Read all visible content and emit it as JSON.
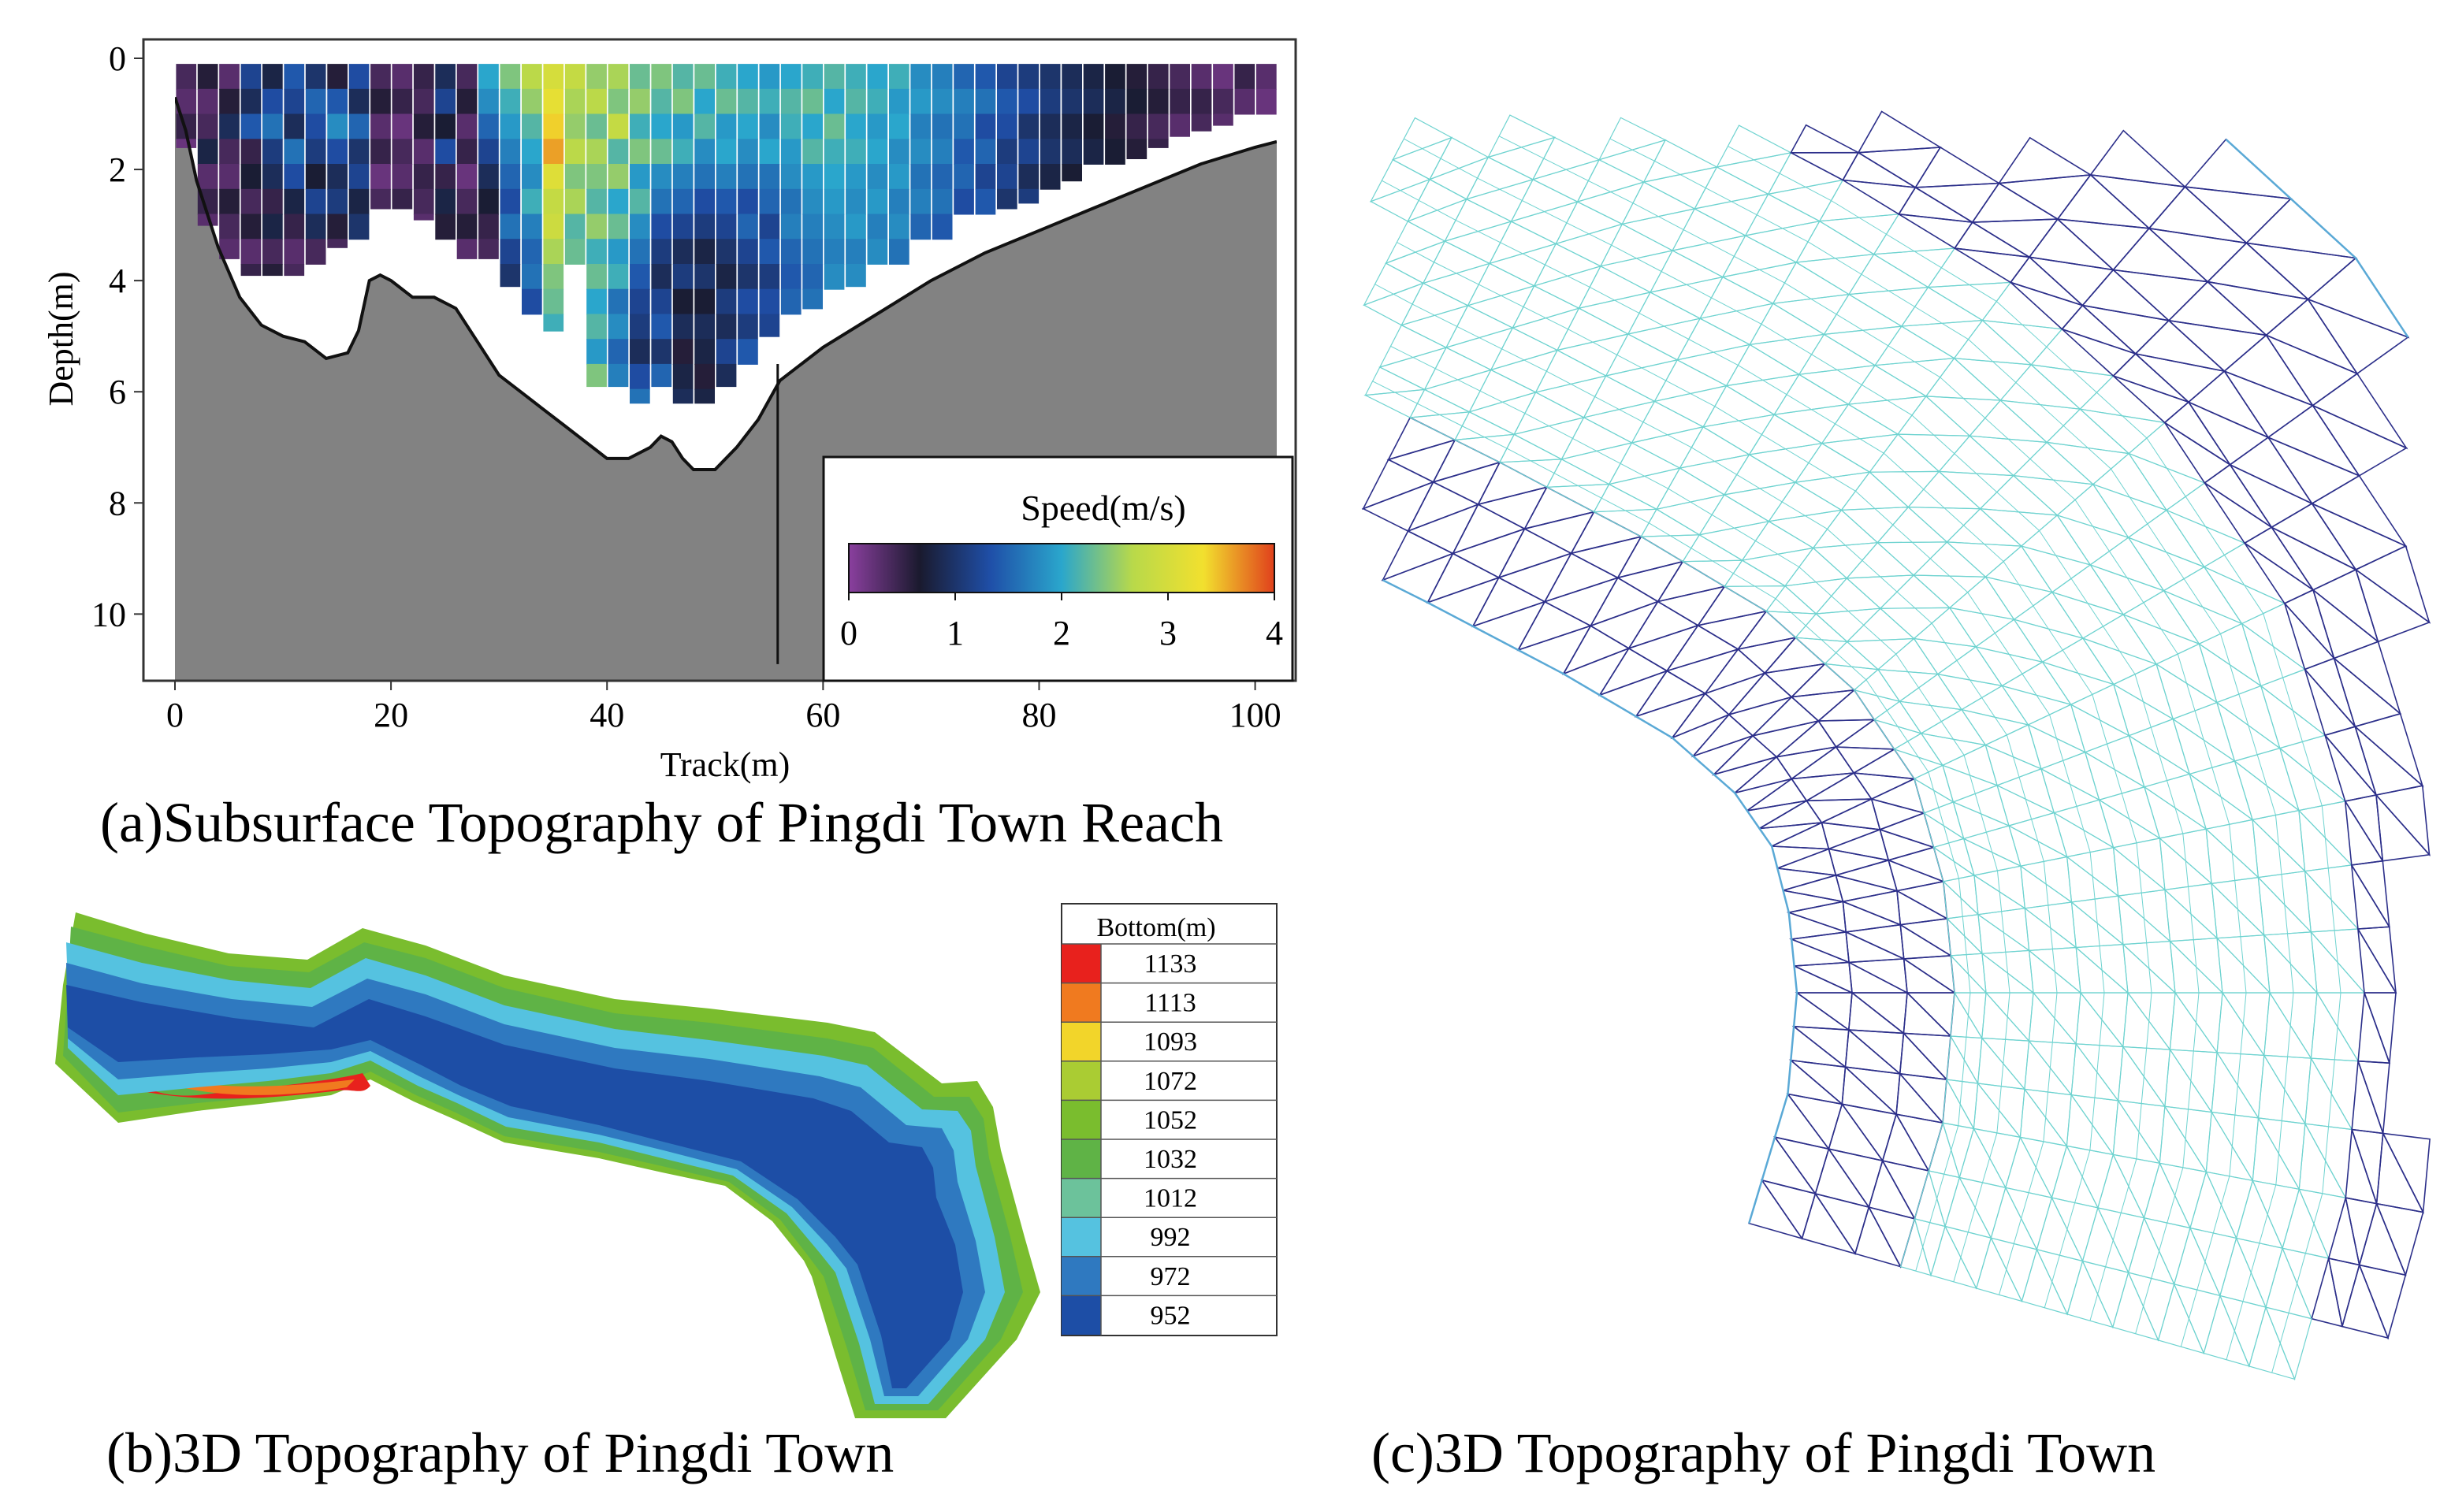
{
  "panel_a": {
    "caption": "(a)Subsurface Topography of Pingdi Town Reach",
    "colorbar_title": "Speed(m/s)",
    "colorbar_colors": [
      "#8a3f9e",
      "#1a1a2e",
      "#1f4fa8",
      "#2aa6cc",
      "#b8d94a",
      "#f2e02e",
      "#e0401c"
    ]
  },
  "panel_b": {
    "caption": "(b)3D Topography of Pingdi Town",
    "legend_title": "Bottom(m)",
    "legend": [
      {
        "label": "1133",
        "color": "#e8211d"
      },
      {
        "label": "1113",
        "color": "#f07a1f"
      },
      {
        "label": "1093",
        "color": "#f2d52a"
      },
      {
        "label": "1072",
        "color": "#aacc33"
      },
      {
        "label": "1052",
        "color": "#7abd2e"
      },
      {
        "label": "1032",
        "color": "#5fb346"
      },
      {
        "label": "1012",
        "color": "#6cc29b"
      },
      {
        "label": "992",
        "color": "#55c2e0"
      },
      {
        "label": "972",
        "color": "#2f79c0"
      },
      {
        "label": "952",
        "color": "#1d4ea6"
      }
    ]
  },
  "panel_c": {
    "caption": "(c)3D Topography of Pingdi Town",
    "mesh_colors": {
      "coarse": "#2c2f8a",
      "fine": "#6fd3d0",
      "boundary": "#5aa9d6"
    }
  },
  "chart_data": [
    {
      "type": "heatmap",
      "title": "",
      "xlabel": "Track(m)",
      "ylabel": "Depth(m)",
      "xlim": [
        0,
        102
      ],
      "ylim": [
        0,
        11.2
      ],
      "y_inverted": true,
      "x_ticks": [
        0,
        20,
        40,
        60,
        80,
        100
      ],
      "y_ticks": [
        0,
        2,
        4,
        6,
        8,
        10
      ],
      "colorbar": {
        "label": "Speed(m/s)",
        "range": [
          0,
          4
        ],
        "ticks": [
          0,
          1,
          2,
          3,
          4
        ]
      },
      "bed_profile": {
        "x": [
          0,
          1,
          2,
          4,
          6,
          8,
          10,
          12,
          14,
          16,
          17,
          18,
          19,
          20,
          22,
          24,
          26,
          28,
          30,
          32,
          34,
          36,
          38,
          40,
          42,
          44,
          45,
          46,
          47,
          48,
          50,
          52,
          54,
          56,
          60,
          65,
          70,
          75,
          80,
          85,
          90,
          95,
          100,
          102
        ],
        "depth": [
          0.7,
          1.3,
          2.2,
          3.4,
          4.3,
          4.8,
          5.0,
          5.1,
          5.4,
          5.3,
          4.9,
          4.0,
          3.9,
          4.0,
          4.3,
          4.3,
          4.5,
          5.1,
          5.7,
          6.0,
          6.3,
          6.6,
          6.9,
          7.2,
          7.2,
          7.0,
          6.8,
          6.9,
          7.2,
          7.4,
          7.4,
          7.0,
          6.5,
          5.8,
          5.2,
          4.6,
          4.0,
          3.5,
          3.1,
          2.7,
          2.3,
          1.9,
          1.6,
          1.5
        ]
      },
      "profile_mark": {
        "x": 55.8,
        "depth_top": 5.5,
        "depth_bottom": 10.9
      },
      "speed_grid": {
        "dx": 1.8,
        "dy": 0.45,
        "columns": [
          {
            "x": 1,
            "bottom": 1.6,
            "speeds": [
              0.4,
              0.3,
              0.5,
              0.2
            ]
          },
          {
            "x": 3,
            "bottom": 3.0,
            "speeds": [
              0.6,
              0.3,
              0.4,
              0.8,
              0.3,
              0.5,
              0.3
            ]
          },
          {
            "x": 5,
            "bottom": 3.6,
            "speeds": [
              0.3,
              0.6,
              0.9,
              0.4,
              0.3,
              0.6,
              0.4,
              0.3
            ]
          },
          {
            "x": 7,
            "bottom": 3.9,
            "speeds": [
              1.2,
              0.9,
              1.4,
              0.5,
              0.7,
              0.4,
              0.6,
              0.3,
              0.5
            ]
          },
          {
            "x": 9,
            "bottom": 3.9,
            "speeds": [
              0.8,
              1.3,
              1.6,
              1.1,
              0.9,
              0.5,
              0.8,
              0.4,
              0.6
            ]
          },
          {
            "x": 11,
            "bottom": 3.9,
            "speeds": [
              1.4,
              1.2,
              0.9,
              1.6,
              1.3,
              0.8,
              0.5,
              0.3,
              0.4
            ]
          },
          {
            "x": 13,
            "bottom": 3.7,
            "speeds": [
              1.0,
              1.5,
              1.3,
              1.1,
              0.7,
              1.2,
              0.9,
              0.4
            ]
          },
          {
            "x": 15,
            "bottom": 3.4,
            "speeds": [
              0.6,
              1.4,
              1.8,
              1.3,
              0.9,
              1.1,
              0.6,
              0.4
            ]
          },
          {
            "x": 17,
            "bottom": 3.3,
            "speeds": [
              1.3,
              0.9,
              1.5,
              1.0,
              1.2,
              0.8,
              1.0
            ]
          },
          {
            "x": 19,
            "bottom": 2.7,
            "speeds": [
              0.4,
              0.6,
              0.3,
              0.5,
              0.2,
              0.4
            ]
          },
          {
            "x": 21,
            "bottom": 2.7,
            "speeds": [
              0.3,
              0.5,
              0.2,
              0.4,
              0.3,
              0.5
            ]
          },
          {
            "x": 23,
            "bottom": 2.9,
            "speeds": [
              0.5,
              0.4,
              0.6,
              0.3,
              0.5,
              0.4,
              0.3
            ]
          },
          {
            "x": 25,
            "bottom": 3.3,
            "speeds": [
              0.9,
              1.2,
              0.7,
              1.3,
              0.5,
              0.8,
              0.6
            ]
          },
          {
            "x": 27,
            "bottom": 3.6,
            "speeds": [
              0.4,
              0.6,
              0.3,
              0.5,
              0.2,
              0.4,
              0.6,
              0.3
            ]
          },
          {
            "x": 29,
            "bottom": 3.6,
            "speeds": [
              2.0,
              1.8,
              1.5,
              1.2,
              0.9,
              0.7,
              0.5,
              0.4
            ]
          },
          {
            "x": 31,
            "bottom": 4.1,
            "speeds": [
              2.4,
              2.1,
              1.9,
              1.7,
              1.5,
              1.3,
              1.6,
              1.2,
              1.0
            ]
          },
          {
            "x": 33,
            "bottom": 4.7,
            "speeds": [
              2.7,
              2.5,
              2.2,
              2.0,
              1.8,
              2.1,
              1.7,
              1.5,
              1.6,
              1.3
            ]
          },
          {
            "x": 35,
            "bottom": 4.9,
            "speeds": [
              3.0,
              3.2,
              3.4,
              3.6,
              3.1,
              2.8,
              2.9,
              2.6,
              2.4,
              2.3,
              2.1
            ]
          },
          {
            "x": 37,
            "bottom": 3.9,
            "speeds": [
              2.8,
              2.6,
              2.5,
              2.7,
              2.4,
              2.6,
              2.2,
              2.3
            ]
          },
          {
            "x": 39,
            "bottom": 5.9,
            "speeds": [
              2.5,
              2.7,
              2.3,
              2.6,
              2.4,
              2.2,
              2.5,
              2.1,
              2.3,
              2.0,
              2.2,
              1.9,
              2.4
            ]
          },
          {
            "x": 41,
            "bottom": 5.9,
            "speeds": [
              2.6,
              2.4,
              2.8,
              2.2,
              2.5,
              2.0,
              2.3,
              1.9,
              2.1,
              1.6,
              1.8,
              1.5,
              1.7
            ]
          },
          {
            "x": 43,
            "bottom": 6.2,
            "speeds": [
              2.3,
              2.5,
              2.1,
              2.4,
              1.9,
              2.2,
              1.8,
              1.6,
              1.4,
              1.2,
              1.1,
              0.9,
              1.3,
              1.6
            ]
          },
          {
            "x": 45,
            "bottom": 5.9,
            "speeds": [
              2.4,
              2.2,
              2.0,
              2.3,
              1.8,
              1.6,
              1.3,
              1.1,
              0.9,
              1.2,
              1.4,
              1.0,
              1.5
            ]
          },
          {
            "x": 47,
            "bottom": 6.2,
            "speeds": [
              2.2,
              2.4,
              1.9,
              2.1,
              1.7,
              1.5,
              1.2,
              0.9,
              1.1,
              0.7,
              0.9,
              0.6,
              0.8,
              0.9
            ]
          },
          {
            "x": 49,
            "bottom": 6.2,
            "speeds": [
              2.3,
              2.0,
              2.2,
              1.8,
              1.6,
              1.3,
              1.1,
              0.8,
              1.0,
              0.7,
              0.9,
              0.8,
              0.6,
              0.8
            ]
          },
          {
            "x": 51,
            "bottom": 5.9,
            "speeds": [
              2.1,
              2.3,
              1.9,
              2.0,
              1.7,
              1.4,
              1.2,
              1.0,
              0.8,
              1.1,
              0.9,
              1.2,
              0.9
            ]
          },
          {
            "x": 53,
            "bottom": 5.6,
            "speeds": [
              2.0,
              2.2,
              2.0,
              1.8,
              1.6,
              1.3,
              1.5,
              1.2,
              1.0,
              1.3,
              1.1,
              1.4
            ]
          },
          {
            "x": 55,
            "bottom": 5.0,
            "speeds": [
              1.9,
              2.1,
              1.8,
              2.0,
              1.6,
              1.5,
              1.2,
              1.4,
              1.1,
              1.3,
              1.2
            ]
          },
          {
            "x": 57,
            "bottom": 4.8,
            "speeds": [
              2.0,
              2.2,
              2.1,
              1.9,
              1.8,
              1.6,
              1.7,
              1.5,
              1.4,
              1.5
            ]
          },
          {
            "x": 59,
            "bottom": 4.5,
            "speeds": [
              2.1,
              2.3,
              2.0,
              2.2,
              1.9,
              1.8,
              1.7,
              1.6,
              1.5,
              1.6
            ]
          },
          {
            "x": 61,
            "bottom": 4.3,
            "speeds": [
              2.2,
              2.0,
              2.3,
              2.1,
              2.0,
              1.9,
              1.8,
              1.7,
              1.8
            ]
          },
          {
            "x": 63,
            "bottom": 4.1,
            "speeds": [
              2.1,
              2.2,
              2.0,
              2.1,
              1.9,
              1.8,
              1.9,
              1.7,
              1.8
            ]
          },
          {
            "x": 65,
            "bottom": 3.9,
            "speeds": [
              2.0,
              2.1,
              1.9,
              2.0,
              1.8,
              1.9,
              1.7,
              1.8
            ]
          },
          {
            "x": 67,
            "bottom": 3.7,
            "speeds": [
              2.1,
              1.9,
              2.0,
              1.8,
              1.9,
              1.7,
              1.8,
              1.6
            ]
          },
          {
            "x": 69,
            "bottom": 3.5,
            "speeds": [
              1.8,
              1.9,
              1.7,
              1.8,
              1.6,
              1.7,
              1.5
            ]
          },
          {
            "x": 71,
            "bottom": 3.3,
            "speeds": [
              1.7,
              1.8,
              1.6,
              1.7,
              1.5,
              1.6,
              1.4
            ]
          },
          {
            "x": 73,
            "bottom": 3.1,
            "speeds": [
              1.5,
              1.7,
              1.6,
              1.4,
              1.5,
              1.3
            ]
          },
          {
            "x": 75,
            "bottom": 2.9,
            "speeds": [
              1.4,
              1.6,
              1.3,
              1.5,
              1.2,
              1.4
            ]
          },
          {
            "x": 77,
            "bottom": 2.7,
            "speeds": [
              1.2,
              1.4,
              1.3,
              1.1,
              1.2,
              1.0
            ]
          },
          {
            "x": 79,
            "bottom": 2.6,
            "speeds": [
              1.1,
              1.3,
              1.0,
              1.2,
              0.9,
              1.1
            ]
          },
          {
            "x": 81,
            "bottom": 2.4,
            "speeds": [
              1.0,
              1.1,
              0.9,
              1.0,
              0.8
            ]
          },
          {
            "x": 83,
            "bottom": 2.2,
            "speeds": [
              0.9,
              1.0,
              0.8,
              0.9,
              0.7
            ]
          },
          {
            "x": 85,
            "bottom": 2.0,
            "speeds": [
              0.8,
              0.9,
              0.7,
              0.8
            ]
          },
          {
            "x": 87,
            "bottom": 1.9,
            "speeds": [
              0.7,
              0.8,
              0.6,
              0.7
            ]
          },
          {
            "x": 89,
            "bottom": 1.8,
            "speeds": [
              0.6,
              0.7,
              0.5,
              0.6
            ]
          },
          {
            "x": 91,
            "bottom": 1.6,
            "speeds": [
              0.5,
              0.6,
              0.4,
              0.5
            ]
          },
          {
            "x": 93,
            "bottom": 1.4,
            "speeds": [
              0.4,
              0.5,
              0.3
            ]
          },
          {
            "x": 95,
            "bottom": 1.3,
            "speeds": [
              0.3,
              0.5,
              0.4
            ]
          },
          {
            "x": 97,
            "bottom": 1.2,
            "speeds": [
              0.2,
              0.4,
              0.3
            ]
          },
          {
            "x": 99,
            "bottom": 1.1,
            "speeds": [
              0.5,
              0.3
            ]
          },
          {
            "x": 101,
            "bottom": 1.0,
            "speeds": [
              0.3,
              0.2
            ]
          }
        ]
      }
    }
  ]
}
